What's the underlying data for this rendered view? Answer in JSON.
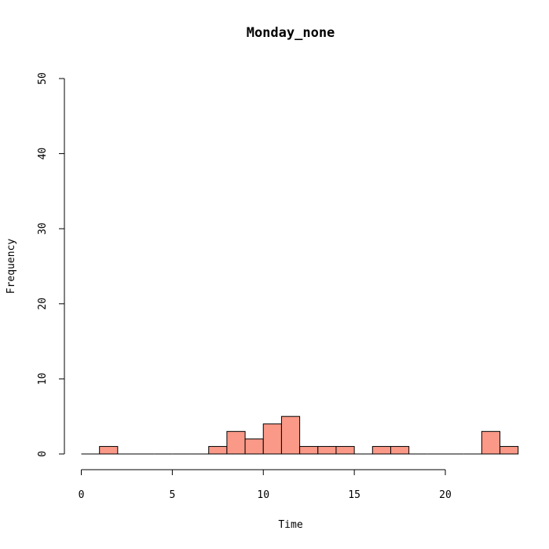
{
  "chart_data": {
    "type": "bar",
    "title": "Monday_none",
    "xlabel": "Time",
    "ylabel": "Frequency",
    "xlim": [
      0,
      24
    ],
    "ylim": [
      0,
      50
    ],
    "bin_width": 1,
    "bins": [
      {
        "start": 0,
        "end": 1,
        "count": 0
      },
      {
        "start": 1,
        "end": 2,
        "count": 1
      },
      {
        "start": 2,
        "end": 3,
        "count": 0
      },
      {
        "start": 3,
        "end": 4,
        "count": 0
      },
      {
        "start": 4,
        "end": 5,
        "count": 0
      },
      {
        "start": 5,
        "end": 6,
        "count": 0
      },
      {
        "start": 6,
        "end": 7,
        "count": 0
      },
      {
        "start": 7,
        "end": 8,
        "count": 1
      },
      {
        "start": 8,
        "end": 9,
        "count": 3
      },
      {
        "start": 9,
        "end": 10,
        "count": 2
      },
      {
        "start": 10,
        "end": 11,
        "count": 4
      },
      {
        "start": 11,
        "end": 12,
        "count": 5
      },
      {
        "start": 12,
        "end": 13,
        "count": 1
      },
      {
        "start": 13,
        "end": 14,
        "count": 1
      },
      {
        "start": 14,
        "end": 15,
        "count": 1
      },
      {
        "start": 15,
        "end": 16,
        "count": 0
      },
      {
        "start": 16,
        "end": 17,
        "count": 1
      },
      {
        "start": 17,
        "end": 18,
        "count": 1
      },
      {
        "start": 18,
        "end": 19,
        "count": 0
      },
      {
        "start": 19,
        "end": 20,
        "count": 0
      },
      {
        "start": 20,
        "end": 21,
        "count": 0
      },
      {
        "start": 21,
        "end": 22,
        "count": 0
      },
      {
        "start": 22,
        "end": 23,
        "count": 3
      },
      {
        "start": 23,
        "end": 24,
        "count": 1
      }
    ],
    "x_ticks": [
      0,
      5,
      10,
      15,
      20
    ],
    "y_ticks": [
      0,
      10,
      20,
      30,
      40,
      50
    ],
    "bar_color": "#fa9987",
    "bar_edge_color": "#000000",
    "grid": false
  }
}
